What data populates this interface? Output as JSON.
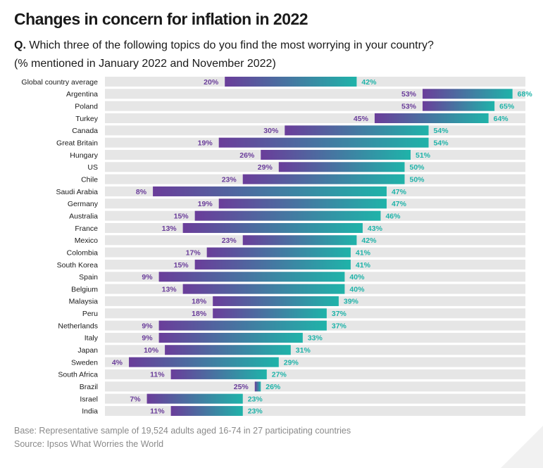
{
  "title": "Changes in concern for inflation in 2022",
  "question": {
    "label": "Q.",
    "text": "Which three of the following topics do you find the most worrying in your country?",
    "subtext": "(% mentioned in January 2022 and November 2022)"
  },
  "footnotes": {
    "base": "Base: Representative sample of 19,524 adults aged 16-74 in 27 participating countries",
    "source": "Source: Ipsos What Worries the World"
  },
  "colors": {
    "jan": "#6a3d9a",
    "nov": "#1fb3a9",
    "row_bg": "#e6e6e6"
  },
  "chart_data": {
    "type": "bar",
    "title": "Changes in concern for inflation in 2022",
    "xlabel": "",
    "ylabel": "",
    "xlim": [
      0,
      100
    ],
    "legend": "none",
    "unit": "%",
    "categories": [
      "Global country average",
      "Argentina",
      "Poland",
      "Turkey",
      "Canada",
      "Great Britain",
      "Hungary",
      "US",
      "Chile",
      "Saudi Arabia",
      "Germany",
      "Australia",
      "France",
      "Mexico",
      "Colombia",
      "South Korea",
      "Spain",
      "Belgium",
      "Malaysia",
      "Peru",
      "Netherlands",
      "Italy",
      "Japan",
      "Sweden",
      "South Africa",
      "Brazil",
      "Israel",
      "India"
    ],
    "series": [
      {
        "name": "January 2022",
        "values": [
          20,
          53,
          53,
          45,
          30,
          19,
          26,
          29,
          23,
          8,
          19,
          15,
          13,
          23,
          17,
          15,
          9,
          13,
          18,
          18,
          9,
          9,
          10,
          4,
          11,
          25,
          7,
          11
        ]
      },
      {
        "name": "November 2022",
        "values": [
          42,
          68,
          65,
          64,
          54,
          54,
          51,
          50,
          50,
          47,
          47,
          46,
          43,
          42,
          41,
          41,
          40,
          40,
          39,
          37,
          37,
          33,
          31,
          29,
          27,
          26,
          23,
          23
        ]
      }
    ]
  }
}
